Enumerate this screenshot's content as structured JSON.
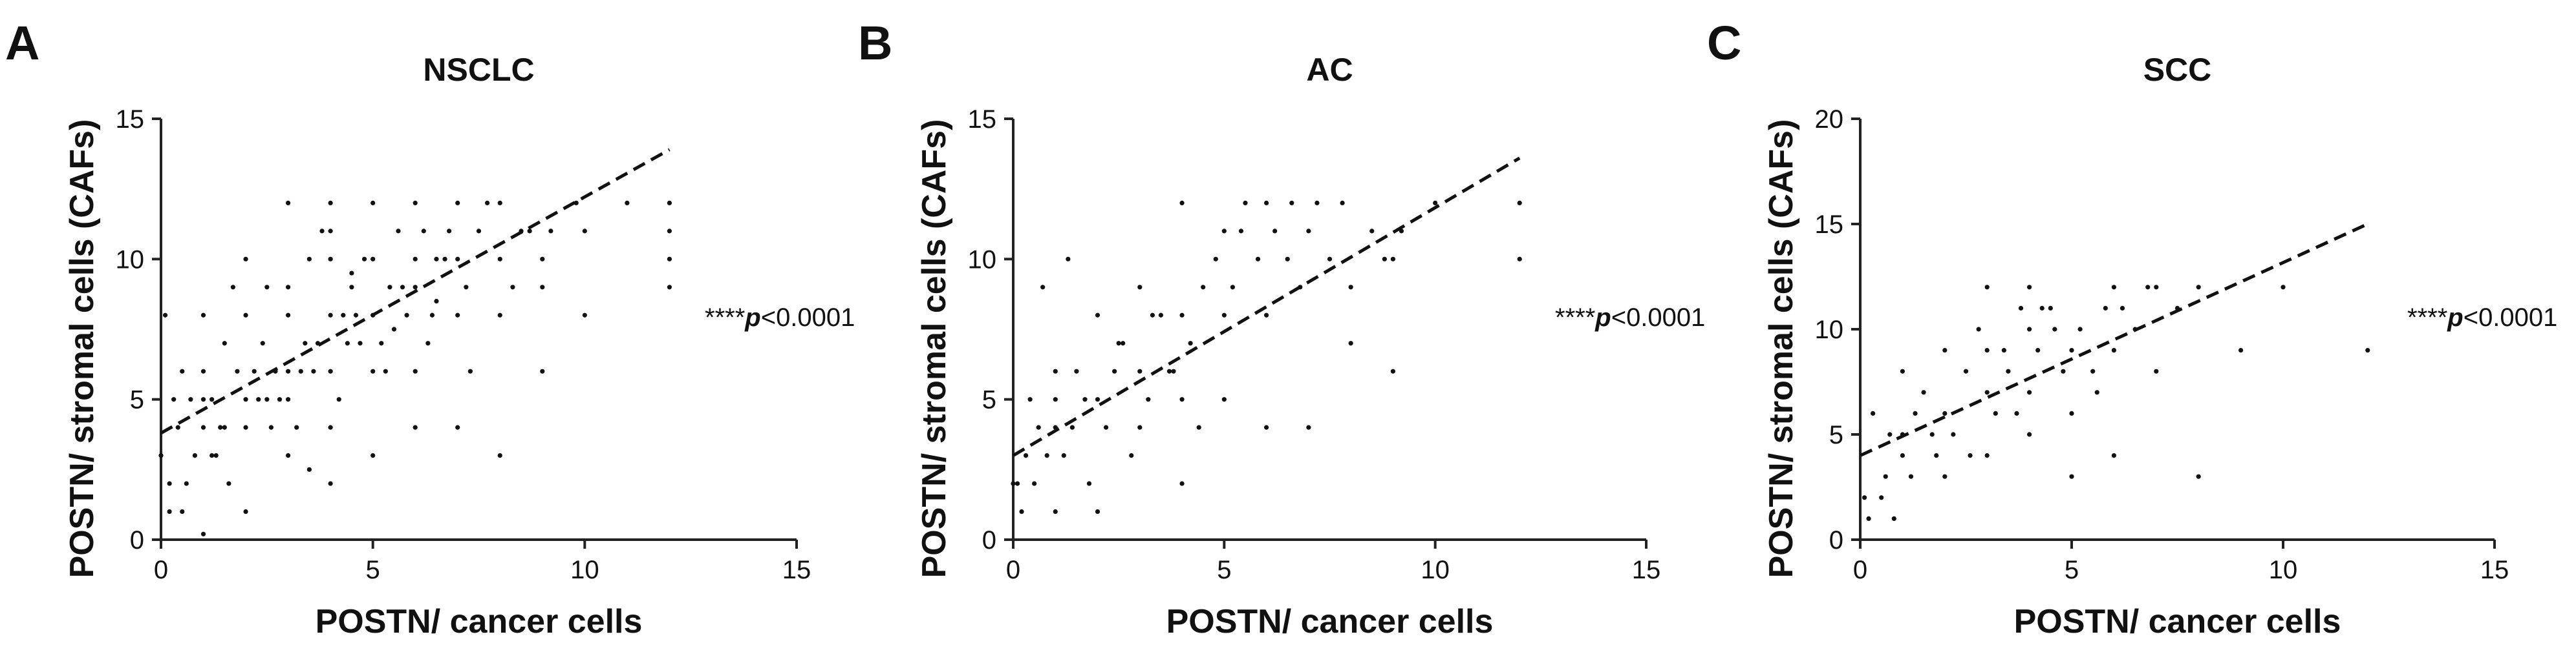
{
  "chart_data": [
    {
      "type": "scatter",
      "panel": "A",
      "title": "NSCLC",
      "xlabel": "POSTN/ cancer cells",
      "ylabel": "POSTN/ stromal cells (CAFs)",
      "xlim": [
        0,
        15
      ],
      "ylim": [
        0,
        15
      ],
      "xticks": [
        0,
        5,
        10,
        15
      ],
      "yticks": [
        0,
        5,
        10,
        15
      ],
      "annotation": {
        "stars": "****",
        "p": "p",
        "rest": "<0.0001"
      },
      "regression": {
        "x": [
          0,
          12
        ],
        "y": [
          3.8,
          13.9
        ]
      },
      "points": {
        "x": [
          0,
          0.2,
          0.2,
          0.3,
          0.4,
          0.5,
          0.6,
          0.8,
          1,
          1,
          1,
          1,
          1,
          1.2,
          1.2,
          1.4,
          1.5,
          1.6,
          1.8,
          2,
          2,
          2,
          2,
          2,
          2.2,
          2.4,
          2.5,
          2.6,
          2.8,
          3,
          3,
          3,
          3,
          3,
          3,
          3.2,
          3.4,
          3.5,
          3.6,
          3.8,
          4,
          4,
          4,
          4,
          4,
          4,
          4,
          4.2,
          4.4,
          4.5,
          4.6,
          4.8,
          5,
          5,
          5,
          5,
          5,
          5.2,
          5.4,
          5.6,
          5.8,
          6,
          6,
          6,
          6,
          6,
          6.2,
          6.4,
          6.5,
          6.8,
          7,
          7,
          7,
          7,
          7.2,
          7.5,
          8,
          8,
          8,
          8,
          8.5,
          9,
          9,
          9,
          9.2,
          9.8,
          10,
          10,
          11,
          12,
          12,
          12,
          12,
          0.1,
          0.5,
          0.7,
          1.3,
          1.7,
          2.3,
          2.7,
          3.3,
          3.7,
          4.3,
          4.7,
          5.3,
          5.7,
          6.3,
          6.7,
          7.3,
          7.7,
          8.3,
          8.7,
          3.5,
          2.5,
          1.5,
          4.5,
          5.5,
          6.5
        ],
        "y": [
          3,
          1,
          2,
          5,
          4,
          6,
          2,
          3,
          0.2,
          4,
          5,
          6,
          8,
          3,
          5,
          4,
          7,
          2,
          6,
          1,
          4,
          5,
          8,
          10,
          6,
          7,
          9,
          4,
          5,
          3,
          5,
          6,
          8,
          9,
          12,
          4,
          7,
          10,
          6,
          11,
          2,
          4,
          6,
          8,
          10,
          11,
          12,
          5,
          7,
          9,
          8,
          10,
          3,
          6,
          8,
          10,
          12,
          7,
          9,
          11,
          8,
          4,
          6,
          9,
          10,
          12,
          11,
          8,
          10,
          11,
          4,
          8,
          10,
          12,
          9,
          11,
          3,
          8,
          10,
          12,
          11,
          6,
          9,
          10,
          11,
          12,
          8,
          11,
          12,
          9,
          10,
          11,
          12,
          8,
          1,
          5,
          3,
          9,
          5,
          6,
          6,
          7,
          8,
          7,
          6,
          9,
          7,
          10,
          6,
          12,
          9,
          11,
          2.5,
          5,
          4,
          9.5,
          7.5,
          8.5
        ]
      }
    },
    {
      "type": "scatter",
      "panel": "B",
      "title": "AC",
      "xlabel": "POSTN/ cancer cells",
      "ylabel": "POSTN/ stromal cells (CAFs)",
      "xlim": [
        0,
        15
      ],
      "ylim": [
        0,
        15
      ],
      "xticks": [
        0,
        5,
        10,
        15
      ],
      "yticks": [
        0,
        5,
        10,
        15
      ],
      "annotation": {
        "stars": "****",
        "p": "p",
        "rest": "<0.0001"
      },
      "regression": {
        "x": [
          0,
          12
        ],
        "y": [
          3.0,
          13.6
        ]
      },
      "points": {
        "x": [
          0,
          0.2,
          0.3,
          0.4,
          0.5,
          0.6,
          0.8,
          1,
          1,
          1,
          1,
          1.2,
          1.4,
          1.5,
          1.8,
          2,
          2,
          2,
          2.2,
          2.4,
          2.6,
          2.8,
          3,
          3,
          3,
          3.2,
          3.5,
          3.8,
          4,
          4,
          4,
          4,
          4.2,
          4.5,
          4.8,
          5,
          5,
          5,
          5.2,
          5.5,
          5.8,
          6,
          6,
          6,
          6.2,
          6.5,
          6.8,
          7,
          7,
          7.2,
          7.5,
          8,
          8,
          8.5,
          9,
          9,
          9.2,
          10,
          12,
          12,
          0.1,
          0.7,
          1.3,
          1.7,
          2.5,
          3.3,
          3.7,
          4.4,
          5.4,
          6.6,
          7.8,
          8.8
        ],
        "y": [
          2,
          1,
          3,
          5,
          2,
          4,
          3,
          1,
          4,
          6,
          5,
          3,
          4,
          6,
          2,
          1,
          5,
          8,
          4,
          6,
          7,
          3,
          4,
          6,
          9,
          5,
          8,
          6,
          2,
          5,
          8,
          12,
          7,
          9,
          10,
          5,
          8,
          11,
          9,
          12,
          10,
          4,
          8,
          12,
          11,
          10,
          9,
          4,
          11,
          12,
          10,
          7,
          9,
          11,
          6,
          10,
          11,
          12,
          10,
          12,
          2,
          9,
          10,
          5,
          7,
          8,
          6,
          4,
          11,
          12,
          12,
          10
        ]
      }
    },
    {
      "type": "scatter",
      "panel": "C",
      "title": "SCC",
      "xlabel": "POSTN/ cancer cells",
      "ylabel": "POSTN/ stromal cells (CAFs)",
      "xlim": [
        0,
        15
      ],
      "ylim": [
        0,
        20
      ],
      "xticks": [
        0,
        5,
        10,
        15
      ],
      "yticks": [
        0,
        5,
        10,
        15,
        20
      ],
      "annotation": {
        "stars": "****",
        "p": "p",
        "rest": "<0.0001"
      },
      "regression": {
        "x": [
          0,
          12
        ],
        "y": [
          4.0,
          15.0
        ]
      },
      "points": {
        "x": [
          0.2,
          0.3,
          0.5,
          0.6,
          0.8,
          1,
          1,
          1,
          1.2,
          1.5,
          1.8,
          2,
          2,
          2,
          2.2,
          2.5,
          2.8,
          3,
          3,
          3,
          3,
          3.2,
          3.5,
          3.8,
          4,
          4,
          4,
          4,
          4.2,
          4.5,
          4.8,
          5,
          5,
          5,
          5.2,
          5.5,
          5.8,
          6,
          6,
          6,
          6.2,
          6.5,
          7,
          7,
          7.5,
          8,
          8,
          9,
          10,
          12,
          0.1,
          0.7,
          1.3,
          2.6,
          3.4,
          4.6,
          5.6,
          6.8,
          1.7,
          3.7,
          4.3
        ],
        "y": [
          1,
          6,
          2,
          3,
          1,
          4,
          5,
          8,
          3,
          7,
          4,
          3,
          6,
          9,
          5,
          8,
          10,
          4,
          7,
          9,
          12,
          6,
          8,
          11,
          5,
          7,
          10,
          12,
          9,
          11,
          8,
          3,
          6,
          9,
          10,
          8,
          11,
          4,
          9,
          12,
          11,
          10,
          8,
          12,
          11,
          3,
          12,
          9,
          12,
          9,
          2,
          5,
          6,
          4,
          9,
          10,
          7,
          12,
          5,
          6,
          11
        ]
      }
    }
  ]
}
